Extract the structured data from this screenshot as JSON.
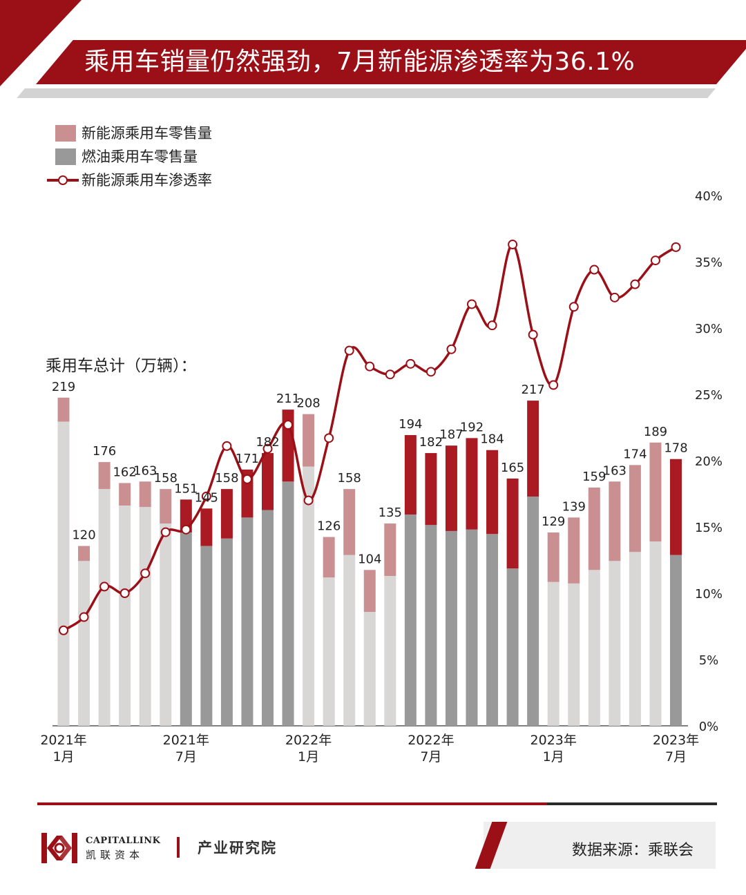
{
  "title": "乘用车销量仍然强劲，7月新能源渗透率为36.1%",
  "legend": {
    "nev": "新能源乘用车零售量",
    "ice": "燃油乘用车零售量",
    "rate": "新能源乘用车渗透率"
  },
  "total_label": "乘用车总计（万辆）：",
  "footer": {
    "brand_en": "CAPITALLINK",
    "brand_cn": "凯联资本",
    "institute": "产业研究院",
    "source": "数据来源：乘联会"
  },
  "colors": {
    "brand": "#9b0f17",
    "nev_light": "#c98f91",
    "nev_dark": "#aa1a23",
    "ice_light": "#d9d6d6",
    "ice_dark": "#999999",
    "line": "#9b0f17"
  },
  "chart_data": {
    "type": "bar",
    "title": "乘用车销量仍然强劲，7月新能源渗透率为36.1%",
    "x_ticks": [
      {
        "month": 0,
        "line1": "2021年",
        "line2": "1月"
      },
      {
        "month": 6,
        "line1": "2021年",
        "line2": "7月"
      },
      {
        "month": 12,
        "line1": "2022年",
        "line2": "1月"
      },
      {
        "month": 18,
        "line1": "2022年",
        "line2": "7月"
      },
      {
        "month": 24,
        "line1": "2023年",
        "line2": "1月"
      },
      {
        "month": 30,
        "line1": "2023年",
        "line2": "7月"
      }
    ],
    "totals": [
      219,
      120,
      176,
      162,
      163,
      158,
      151,
      145,
      158,
      171,
      182,
      211,
      208,
      126,
      158,
      104,
      135,
      194,
      182,
      187,
      192,
      184,
      165,
      217,
      129,
      139,
      159,
      163,
      174,
      189,
      178
    ],
    "penetration": [
      7.2,
      8.2,
      10.5,
      10.0,
      11.5,
      14.6,
      14.8,
      17.3,
      21.1,
      18.6,
      20.9,
      22.7,
      17.0,
      21.7,
      28.3,
      27.1,
      26.5,
      27.3,
      26.7,
      28.4,
      31.8,
      30.2,
      36.3,
      29.5,
      25.7,
      31.6,
      34.4,
      32.3,
      33.3,
      35.1,
      36.1
    ],
    "emphasis": [
      false,
      false,
      false,
      false,
      false,
      false,
      true,
      true,
      true,
      true,
      true,
      true,
      false,
      false,
      false,
      false,
      false,
      true,
      true,
      true,
      true,
      true,
      true,
      true,
      false,
      false,
      false,
      false,
      false,
      false,
      true
    ],
    "series": [
      {
        "name": "新能源乘用车零售量",
        "values": [
          16,
          10,
          18,
          15,
          17,
          23,
          22,
          25,
          33,
          32,
          38,
          48,
          35,
          27,
          44,
          28,
          35,
          53,
          48,
          57,
          61,
          56,
          60,
          64,
          33,
          44,
          55,
          53,
          58,
          66,
          64
        ]
      },
      {
        "name": "燃油乘用车零售量",
        "values": [
          203,
          110,
          158,
          147,
          146,
          135,
          129,
          120,
          125,
          139,
          144,
          163,
          173,
          99,
          114,
          76,
          100,
          141,
          134,
          130,
          131,
          128,
          105,
          153,
          96,
          95,
          104,
          110,
          116,
          123,
          114
        ]
      }
    ],
    "ylabel": "乘用车总计（万辆）",
    "ylim": [
      0,
      250
    ],
    "y2_ticks": [
      "0%",
      "5%",
      "10%",
      "15%",
      "20%",
      "25%",
      "30%",
      "35%",
      "40%"
    ],
    "y2lim": [
      0,
      40
    ]
  }
}
